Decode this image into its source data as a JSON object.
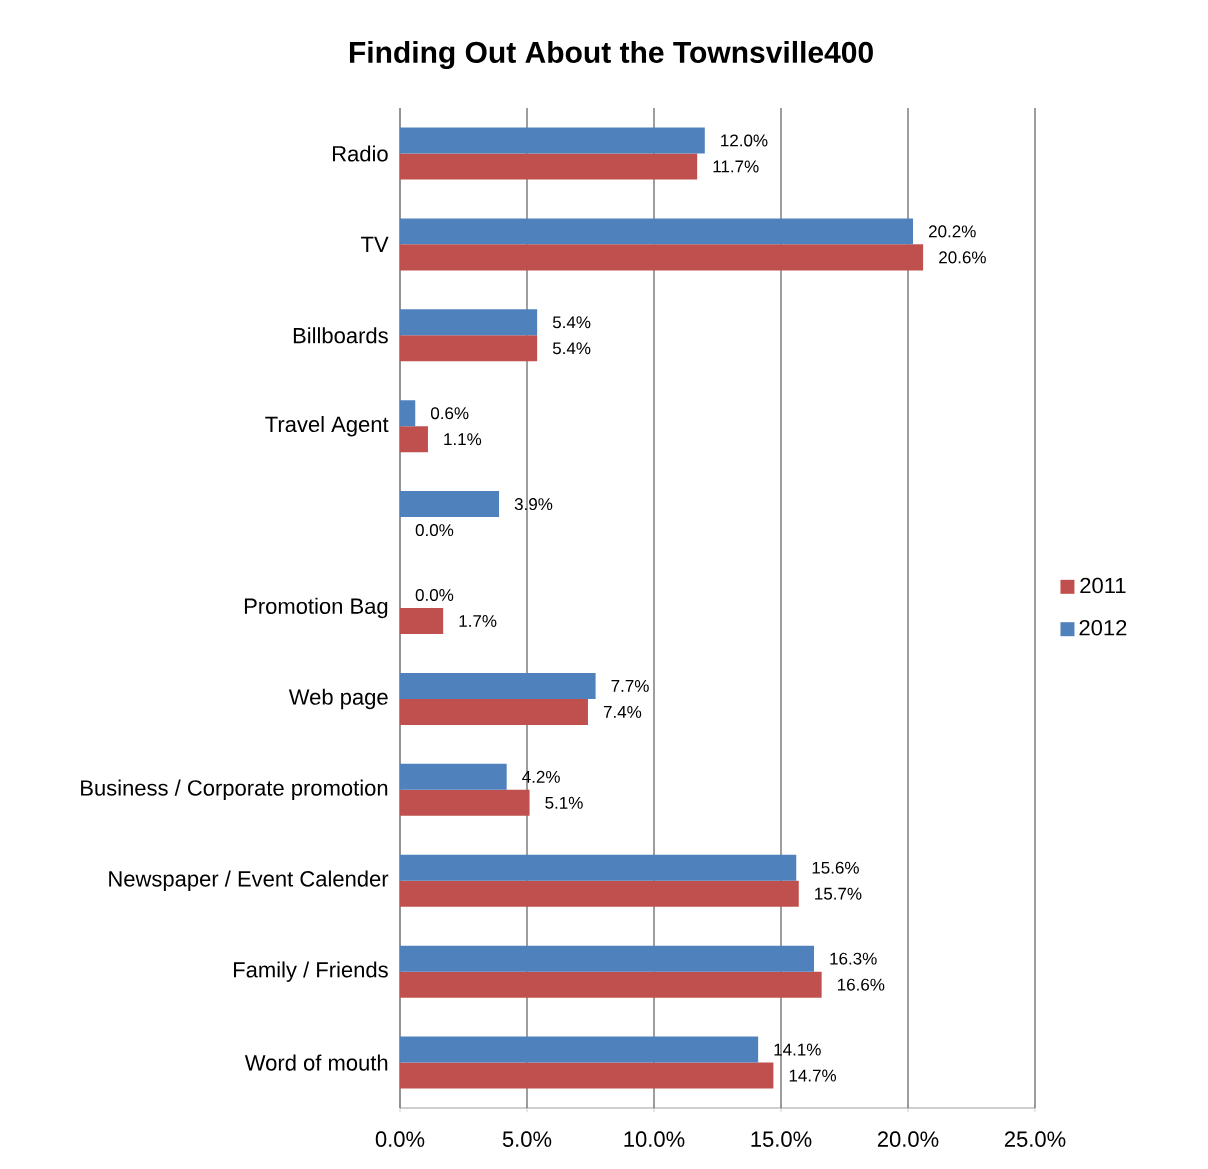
{
  "chart_data": {
    "type": "bar",
    "orientation": "horizontal",
    "title": "Finding Out About the Townsville400",
    "categories": [
      "Radio",
      "TV",
      "Billboards",
      "Travel Agent",
      null,
      "Promotion Bag",
      "Web page",
      "Business / Corporate promotion",
      "Newspaper / Event Calender",
      "Family / Friends",
      "Word of mouth"
    ],
    "series": [
      {
        "name": "2011",
        "color": "#c0504d",
        "values": [
          11.7,
          20.6,
          5.4,
          1.1,
          0.0,
          1.7,
          7.4,
          5.1,
          15.7,
          16.6,
          14.7
        ],
        "value_labels": [
          "11.7%",
          "20.6%",
          "5.4%",
          "1.1%",
          "0.0%",
          "1.7%",
          "7.4%",
          "5.1%",
          "15.7%",
          "16.6%",
          "14.7%"
        ]
      },
      {
        "name": "2012",
        "color": "#4f81bd",
        "values": [
          12.0,
          20.2,
          5.4,
          0.6,
          3.9,
          0.0,
          7.7,
          4.2,
          15.6,
          16.3,
          14.1
        ],
        "value_labels": [
          "12.0%",
          "20.2%",
          "5.4%",
          "0.6%",
          "3.9%",
          "0.0%",
          "7.7%",
          "4.2%",
          "15.6%",
          "16.3%",
          "14.1%"
        ]
      }
    ],
    "xlim": [
      0,
      25
    ],
    "xticks": [
      {
        "value": 0,
        "label": "0.0%"
      },
      {
        "value": 5,
        "label": "5.0%"
      },
      {
        "value": 10,
        "label": "10.0%"
      },
      {
        "value": 15,
        "label": "15.0%"
      },
      {
        "value": 20,
        "label": "20.0%"
      },
      {
        "value": 25,
        "label": "25.0%"
      }
    ],
    "grid": "x",
    "legend": "right"
  }
}
